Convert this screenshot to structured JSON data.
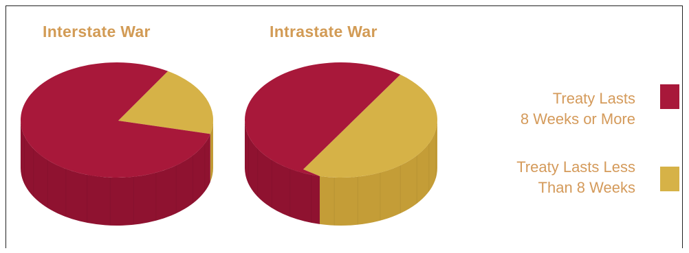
{
  "chart_data": [
    {
      "type": "pie",
      "title": "Interstate War",
      "series_names": [
        "Treaty Lasts 8 Weeks or More",
        "Treaty Lasts Less Than 8 Weeks"
      ],
      "values": [
        0.8,
        0.2
      ]
    },
    {
      "type": "pie",
      "title": "Intrastate War",
      "series_names": [
        "Treaty Lasts 8 Weeks or More",
        "Treaty Lasts Less Than 8 Weeks"
      ],
      "values": [
        0.57,
        0.43
      ]
    }
  ],
  "legend": {
    "items": [
      {
        "line1": "Treaty Lasts",
        "line2": "8 Weeks or More",
        "color": "#a8183a"
      },
      {
        "line1": "Treaty Lasts Less",
        "line2": "Than 8 Weeks",
        "color": "#d6b247"
      }
    ]
  },
  "colors": {
    "red_top": "#a8183a",
    "red_side": "#8f1230",
    "gold_top": "#d6b247",
    "gold_side": "#c49d37",
    "title": "#d29b55",
    "legend_text": "#d49a5a"
  }
}
